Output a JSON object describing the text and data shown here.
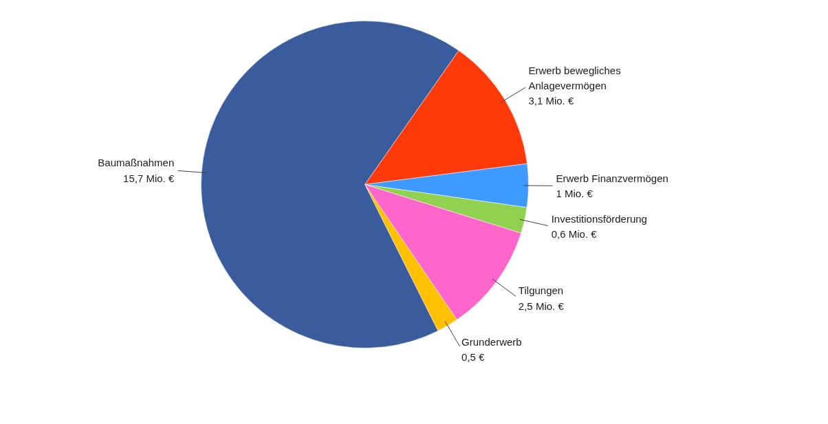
{
  "chart_data": {
    "type": "pie",
    "categories": [
      "Erwerb bewegliches Anlagevermögen",
      "Erwerb Finanzvermögen",
      "Investitionsförderung",
      "Tilgungen",
      "Grunderwerb",
      "Baumaßnahmen"
    ],
    "values": [
      3.1,
      1,
      0.6,
      2.5,
      0.5,
      15.7
    ],
    "value_labels": [
      "3,1 Mio. €",
      "1 Mio. €",
      "0,6 Mio. €",
      "2,5 Mio. €",
      "0,5 €",
      "15,7 Mio. €"
    ],
    "colors": [
      "#ff3a0a",
      "#3d9bff",
      "#92d050",
      "#ff66cc",
      "#ffc000",
      "#3a5c9c"
    ]
  }
}
